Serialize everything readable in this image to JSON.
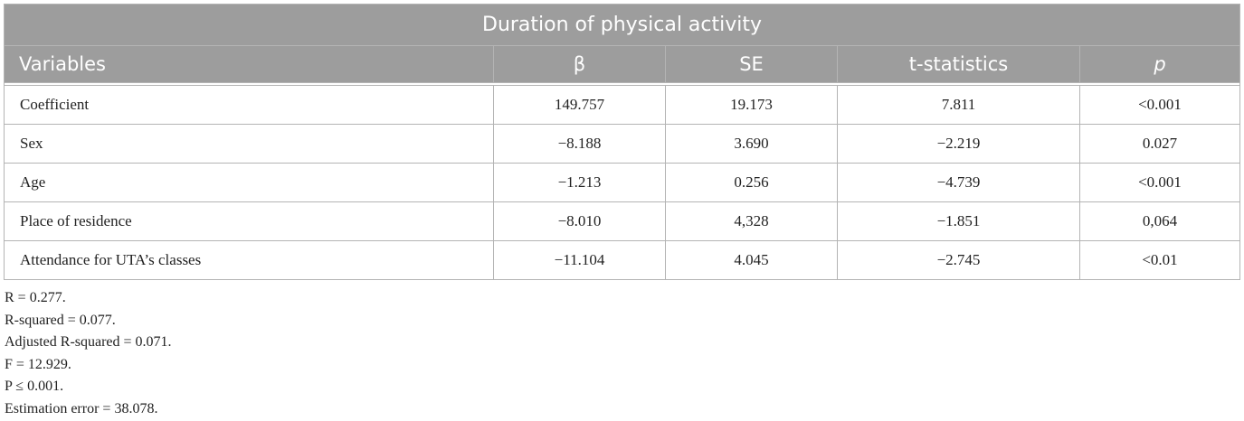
{
  "table": {
    "title": "Duration of physical activity",
    "columns": [
      "Variables",
      "β",
      "SE",
      "t-statistics",
      "p"
    ],
    "rows": [
      [
        "Coefficient",
        "149.757",
        "19.173",
        "7.811",
        "<0.001"
      ],
      [
        "Sex",
        "−8.188",
        "3.690",
        "−2.219",
        "0.027"
      ],
      [
        "Age",
        "−1.213",
        "0.256",
        "−4.739",
        "<0.001"
      ],
      [
        "Place of residence",
        "−8.010",
        "4,328",
        "−1.851",
        "0,064"
      ],
      [
        "Attendance for UTA’s classes",
        "−11.104",
        "4.045",
        "−2.745",
        "<0.01"
      ]
    ]
  },
  "notes": [
    "R = 0.277.",
    "R-squared = 0.077.",
    "Adjusted R-squared = 0.071.",
    "F = 12.929.",
    "P ≤ 0.001.",
    "Estimation error = 38.078."
  ],
  "colors": {
    "header_bg": "#9d9d9d",
    "header_text": "#ffffff",
    "border": "#b4b4b4",
    "body_text": "#222222"
  }
}
